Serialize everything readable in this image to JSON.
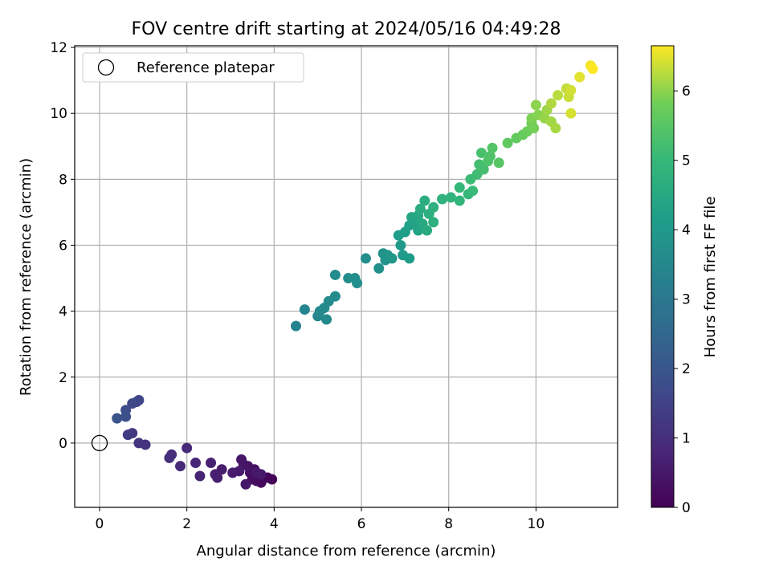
{
  "chart_data": {
    "type": "scatter",
    "title": "FOV centre drift starting at 2024/05/16 04:49:28",
    "xlabel": "Angular distance from reference (arcmin)",
    "ylabel": "Rotation from reference (arcmin)",
    "xlim": [
      -0.57,
      11.87
    ],
    "ylim": [
      -1.95,
      12.05
    ],
    "xticks": [
      0,
      2,
      4,
      6,
      8,
      10
    ],
    "yticks": [
      0,
      2,
      4,
      6,
      8,
      10,
      12
    ],
    "grid": true,
    "legend": {
      "position": "top-left",
      "entries": [
        "Reference platepar"
      ]
    },
    "reference_point": {
      "x": 0,
      "y": 0,
      "marker": "open-circle"
    },
    "colorbar": {
      "label": "Hours from first FF file",
      "range": [
        0,
        6.65
      ],
      "ticks": [
        0,
        1,
        2,
        3,
        4,
        5,
        6
      ],
      "colormap": "viridis"
    },
    "series": [
      {
        "points": [
          {
            "x": 3.95,
            "y": -1.1,
            "c": 0.05
          },
          {
            "x": 3.85,
            "y": -1.05,
            "c": 0.1
          },
          {
            "x": 3.7,
            "y": -1.2,
            "c": 0.15
          },
          {
            "x": 3.6,
            "y": -1.15,
            "c": 0.2
          },
          {
            "x": 3.5,
            "y": -1.1,
            "c": 0.25
          },
          {
            "x": 3.45,
            "y": -0.9,
            "c": 0.3
          },
          {
            "x": 3.55,
            "y": -0.8,
            "c": 0.35
          },
          {
            "x": 3.4,
            "y": -0.7,
            "c": 0.4
          },
          {
            "x": 3.3,
            "y": -0.65,
            "c": 0.42
          },
          {
            "x": 3.25,
            "y": -0.5,
            "c": 0.45
          },
          {
            "x": 3.35,
            "y": -1.25,
            "c": 0.48
          },
          {
            "x": 3.7,
            "y": -0.95,
            "c": 0.5
          },
          {
            "x": 3.6,
            "y": -0.9,
            "c": 0.52
          },
          {
            "x": 3.2,
            "y": -0.85,
            "c": 0.55
          },
          {
            "x": 3.05,
            "y": -0.9,
            "c": 0.58
          },
          {
            "x": 2.8,
            "y": -0.8,
            "c": 0.6
          },
          {
            "x": 2.7,
            "y": -1.05,
            "c": 0.63
          },
          {
            "x": 2.65,
            "y": -0.95,
            "c": 0.66
          },
          {
            "x": 2.55,
            "y": -0.6,
            "c": 0.7
          },
          {
            "x": 2.3,
            "y": -1.0,
            "c": 0.75
          },
          {
            "x": 2.2,
            "y": -0.6,
            "c": 0.8
          },
          {
            "x": 2.0,
            "y": -0.15,
            "c": 0.85
          },
          {
            "x": 1.85,
            "y": -0.7,
            "c": 0.9
          },
          {
            "x": 1.65,
            "y": -0.35,
            "c": 0.95
          },
          {
            "x": 1.6,
            "y": -0.45,
            "c": 1.0
          },
          {
            "x": 1.05,
            "y": -0.05,
            "c": 1.1
          },
          {
            "x": 0.9,
            "y": 0.0,
            "c": 1.15
          },
          {
            "x": 0.75,
            "y": 0.3,
            "c": 1.2
          },
          {
            "x": 0.65,
            "y": 0.25,
            "c": 1.3
          },
          {
            "x": 0.85,
            "y": 1.25,
            "c": 1.45
          },
          {
            "x": 0.9,
            "y": 1.3,
            "c": 1.55
          },
          {
            "x": 0.75,
            "y": 1.2,
            "c": 1.65
          },
          {
            "x": 0.6,
            "y": 1.0,
            "c": 1.75
          },
          {
            "x": 0.6,
            "y": 0.8,
            "c": 1.85
          },
          {
            "x": 0.4,
            "y": 0.75,
            "c": 1.95
          },
          {
            "x": 4.5,
            "y": 3.55,
            "c": 3.35
          },
          {
            "x": 4.7,
            "y": 4.05,
            "c": 3.4
          },
          {
            "x": 5.0,
            "y": 3.85,
            "c": 3.45
          },
          {
            "x": 5.05,
            "y": 4.0,
            "c": 3.5
          },
          {
            "x": 5.2,
            "y": 3.75,
            "c": 3.52
          },
          {
            "x": 5.15,
            "y": 4.1,
            "c": 3.55
          },
          {
            "x": 5.25,
            "y": 4.3,
            "c": 3.58
          },
          {
            "x": 5.4,
            "y": 4.45,
            "c": 3.6
          },
          {
            "x": 5.4,
            "y": 5.1,
            "c": 3.62
          },
          {
            "x": 5.7,
            "y": 5.0,
            "c": 3.65
          },
          {
            "x": 5.85,
            "y": 5.0,
            "c": 3.68
          },
          {
            "x": 5.9,
            "y": 4.85,
            "c": 3.7
          },
          {
            "x": 6.1,
            "y": 5.6,
            "c": 3.72
          },
          {
            "x": 6.4,
            "y": 5.3,
            "c": 3.75
          },
          {
            "x": 6.5,
            "y": 5.75,
            "c": 3.8
          },
          {
            "x": 6.6,
            "y": 5.7,
            "c": 3.85
          },
          {
            "x": 6.55,
            "y": 5.55,
            "c": 3.9
          },
          {
            "x": 6.7,
            "y": 5.6,
            "c": 3.95
          },
          {
            "x": 6.9,
            "y": 6.0,
            "c": 4.0
          },
          {
            "x": 6.95,
            "y": 5.7,
            "c": 4.05
          },
          {
            "x": 7.1,
            "y": 5.6,
            "c": 4.1
          },
          {
            "x": 6.85,
            "y": 6.3,
            "c": 4.15
          },
          {
            "x": 7.0,
            "y": 6.4,
            "c": 4.2
          },
          {
            "x": 7.1,
            "y": 6.6,
            "c": 4.25
          },
          {
            "x": 7.2,
            "y": 6.7,
            "c": 4.3
          },
          {
            "x": 7.3,
            "y": 6.45,
            "c": 4.35
          },
          {
            "x": 7.15,
            "y": 6.85,
            "c": 4.4
          },
          {
            "x": 7.3,
            "y": 6.9,
            "c": 4.45
          },
          {
            "x": 7.4,
            "y": 6.65,
            "c": 4.5
          },
          {
            "x": 7.5,
            "y": 6.45,
            "c": 4.55
          },
          {
            "x": 7.35,
            "y": 7.1,
            "c": 4.6
          },
          {
            "x": 7.45,
            "y": 7.35,
            "c": 4.65
          },
          {
            "x": 7.55,
            "y": 6.95,
            "c": 4.7
          },
          {
            "x": 7.65,
            "y": 6.7,
            "c": 4.72
          },
          {
            "x": 7.65,
            "y": 7.15,
            "c": 4.75
          },
          {
            "x": 7.85,
            "y": 7.4,
            "c": 4.8
          },
          {
            "x": 8.05,
            "y": 7.45,
            "c": 4.85
          },
          {
            "x": 8.25,
            "y": 7.35,
            "c": 4.9
          },
          {
            "x": 8.45,
            "y": 7.55,
            "c": 4.95
          },
          {
            "x": 8.25,
            "y": 7.75,
            "c": 5.0
          },
          {
            "x": 8.55,
            "y": 7.65,
            "c": 5.05
          },
          {
            "x": 8.5,
            "y": 8.0,
            "c": 5.1
          },
          {
            "x": 8.65,
            "y": 8.15,
            "c": 5.15
          },
          {
            "x": 8.7,
            "y": 8.45,
            "c": 5.2
          },
          {
            "x": 8.8,
            "y": 8.3,
            "c": 5.25
          },
          {
            "x": 8.75,
            "y": 8.8,
            "c": 5.3
          },
          {
            "x": 8.9,
            "y": 8.55,
            "c": 5.35
          },
          {
            "x": 8.95,
            "y": 8.7,
            "c": 5.4
          },
          {
            "x": 9.0,
            "y": 8.95,
            "c": 5.45
          },
          {
            "x": 9.15,
            "y": 8.5,
            "c": 5.5
          },
          {
            "x": 9.35,
            "y": 9.1,
            "c": 5.6
          },
          {
            "x": 9.55,
            "y": 9.25,
            "c": 5.65
          },
          {
            "x": 9.7,
            "y": 9.35,
            "c": 5.7
          },
          {
            "x": 9.8,
            "y": 9.45,
            "c": 5.75
          },
          {
            "x": 9.9,
            "y": 9.7,
            "c": 5.8
          },
          {
            "x": 9.95,
            "y": 9.55,
            "c": 5.85
          },
          {
            "x": 9.9,
            "y": 9.85,
            "c": 5.9
          },
          {
            "x": 10.05,
            "y": 9.95,
            "c": 5.95
          },
          {
            "x": 10.0,
            "y": 10.25,
            "c": 6.0
          },
          {
            "x": 10.2,
            "y": 9.85,
            "c": 6.05
          },
          {
            "x": 10.25,
            "y": 10.1,
            "c": 6.1
          },
          {
            "x": 10.35,
            "y": 9.75,
            "c": 6.12
          },
          {
            "x": 10.45,
            "y": 9.55,
            "c": 6.15
          },
          {
            "x": 10.35,
            "y": 10.3,
            "c": 6.2
          },
          {
            "x": 10.5,
            "y": 10.55,
            "c": 6.25
          },
          {
            "x": 10.7,
            "y": 10.75,
            "c": 6.3
          },
          {
            "x": 10.75,
            "y": 10.5,
            "c": 6.35
          },
          {
            "x": 10.8,
            "y": 10.7,
            "c": 6.4
          },
          {
            "x": 10.8,
            "y": 10.0,
            "c": 6.42
          },
          {
            "x": 11.0,
            "y": 11.1,
            "c": 6.5
          },
          {
            "x": 11.25,
            "y": 11.45,
            "c": 6.6
          },
          {
            "x": 11.3,
            "y": 11.35,
            "c": 6.65
          }
        ]
      }
    ]
  }
}
